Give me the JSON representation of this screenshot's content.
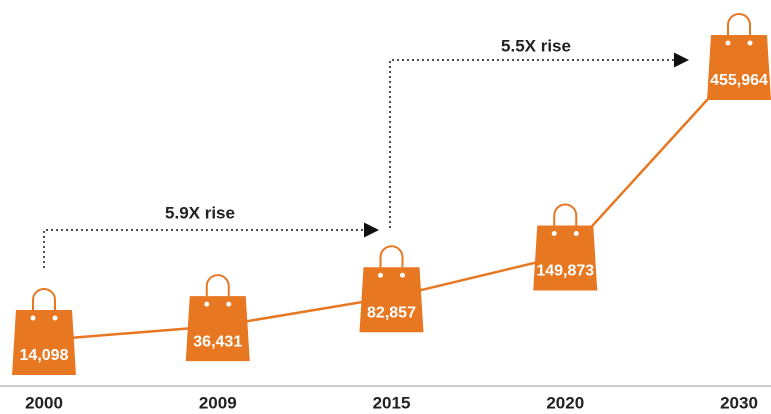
{
  "chart_data": {
    "type": "line",
    "categories": [
      "2000",
      "2009",
      "2015",
      "2020",
      "2030"
    ],
    "values": [
      14098,
      36431,
      82857,
      149873,
      455964
    ],
    "value_labels": [
      "14,098",
      "36,431",
      "82,857",
      "149,873",
      "455,964"
    ],
    "color": "#e87722",
    "annotations": [
      "5.9X rise",
      "5.5X rise"
    ]
  }
}
